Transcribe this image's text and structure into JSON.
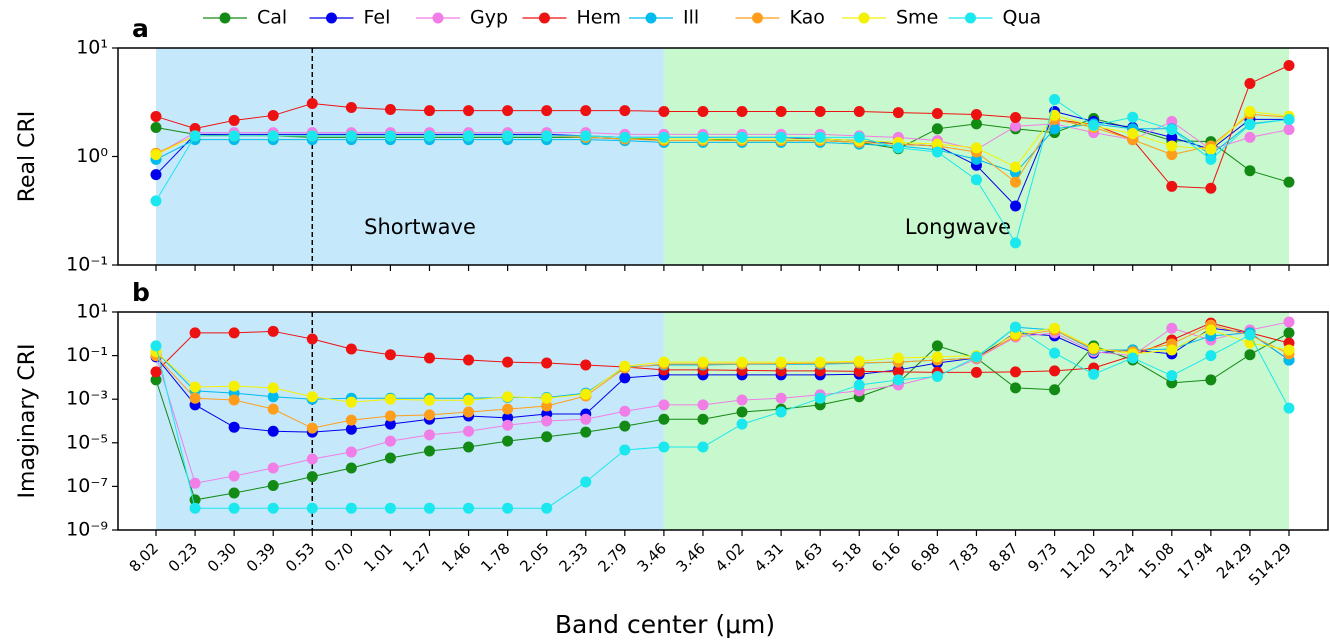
{
  "chart_data": [
    {
      "type": "line",
      "panel_label": "a",
      "ylabel": "Real CRI",
      "log_y": true,
      "ylim": [
        0.1,
        10
      ],
      "yticks": [
        {
          "value": 0.1,
          "label": "10⁻¹"
        },
        {
          "value": 1,
          "label": "10⁰"
        },
        {
          "value": 10,
          "label": "10¹"
        }
      ],
      "annotations": [
        "Shortwave",
        "Longwave"
      ],
      "series": [
        {
          "name": "Cal",
          "color": "#138a13",
          "values": [
            1.85,
            1.6,
            1.55,
            1.55,
            1.5,
            1.5,
            1.5,
            1.5,
            1.5,
            1.5,
            1.5,
            1.5,
            1.45,
            1.45,
            1.45,
            1.4,
            1.4,
            1.4,
            1.35,
            1.18,
            1.8,
            2.0,
            1.8,
            1.66,
            2.24,
            1.8,
            1.4,
            1.37,
            0.74,
            0.58
          ]
        },
        {
          "name": "Fel",
          "color": "#0000ee",
          "values": [
            0.68,
            1.6,
            1.6,
            1.6,
            1.6,
            1.6,
            1.6,
            1.6,
            1.6,
            1.6,
            1.6,
            1.55,
            1.5,
            1.5,
            1.5,
            1.5,
            1.5,
            1.45,
            1.4,
            1.3,
            1.25,
            0.83,
            0.35,
            2.6,
            2.1,
            1.85,
            1.5,
            1.16,
            2.2,
            2.2
          ]
        },
        {
          "name": "Gyp",
          "color": "#f07ee6",
          "values": [
            1.04,
            1.66,
            1.66,
            1.66,
            1.66,
            1.66,
            1.66,
            1.66,
            1.66,
            1.66,
            1.66,
            1.66,
            1.6,
            1.6,
            1.6,
            1.6,
            1.6,
            1.6,
            1.55,
            1.5,
            1.4,
            1.16,
            1.9,
            2.0,
            1.66,
            1.43,
            2.1,
            1.16,
            1.5,
            1.77
          ]
        },
        {
          "name": "Hem",
          "color": "#ee1111",
          "values": [
            2.34,
            1.81,
            2.15,
            2.39,
            3.08,
            2.83,
            2.71,
            2.65,
            2.65,
            2.65,
            2.65,
            2.65,
            2.65,
            2.6,
            2.6,
            2.6,
            2.6,
            2.6,
            2.6,
            2.54,
            2.49,
            2.44,
            2.29,
            2.19,
            1.97,
            1.43,
            0.53,
            0.51,
            4.71,
            6.9
          ]
        },
        {
          "name": "Ill",
          "color": "#00bbee",
          "values": [
            0.94,
            1.43,
            1.43,
            1.43,
            1.43,
            1.43,
            1.43,
            1.43,
            1.43,
            1.43,
            1.43,
            1.43,
            1.4,
            1.35,
            1.35,
            1.35,
            1.35,
            1.35,
            1.3,
            1.25,
            1.15,
            0.94,
            0.71,
            1.8,
            2.0,
            1.8,
            1.8,
            1.04,
            2.0,
            2.2
          ]
        },
        {
          "name": "Kao",
          "color": "#ff9e1a",
          "values": [
            1.07,
            1.55,
            1.55,
            1.55,
            1.55,
            1.55,
            1.55,
            1.55,
            1.55,
            1.55,
            1.55,
            1.5,
            1.45,
            1.4,
            1.4,
            1.4,
            1.4,
            1.4,
            1.35,
            1.3,
            1.25,
            1.1,
            0.58,
            2.2,
            1.85,
            1.43,
            1.04,
            1.25,
            2.45,
            2.3
          ]
        },
        {
          "name": "Sme",
          "color": "#f5f000",
          "values": [
            1.04,
            1.55,
            1.55,
            1.55,
            1.55,
            1.55,
            1.55,
            1.55,
            1.55,
            1.55,
            1.55,
            1.55,
            1.5,
            1.45,
            1.45,
            1.45,
            1.45,
            1.45,
            1.4,
            1.35,
            1.3,
            1.2,
            0.8,
            2.4,
            1.9,
            1.63,
            1.25,
            1.16,
            2.6,
            2.35
          ]
        },
        {
          "name": "Qua",
          "color": "#1ae8ee",
          "values": [
            0.39,
            1.55,
            1.55,
            1.55,
            1.55,
            1.55,
            1.55,
            1.55,
            1.55,
            1.55,
            1.55,
            1.55,
            1.5,
            1.5,
            1.5,
            1.5,
            1.5,
            1.5,
            1.5,
            1.2,
            1.1,
            0.61,
            0.16,
            3.35,
            1.93,
            2.3,
            1.77,
            0.94,
            1.97,
            2.2
          ]
        }
      ]
    },
    {
      "type": "line",
      "panel_label": "b",
      "ylabel": "Imaginary CRI",
      "log_y": true,
      "ylim": [
        1e-09,
        10
      ],
      "yticks": [
        {
          "value": 10,
          "label": "10¹"
        },
        {
          "value": 0.1,
          "label": "10⁻¹"
        },
        {
          "value": 0.001,
          "label": "10⁻³"
        },
        {
          "value": 1e-05,
          "label": "10⁻⁵"
        },
        {
          "value": 1e-07,
          "label": "10⁻⁷"
        },
        {
          "value": 1e-09,
          "label": "10⁻⁹"
        }
      ],
      "xlabel": "Band center (μm)",
      "categories": [
        "8.02",
        "0.23",
        "0.30",
        "0.39",
        "0.53",
        "0.70",
        "1.01",
        "1.27",
        "1.46",
        "1.78",
        "2.05",
        "2.33",
        "2.79",
        "3.46",
        "3.46",
        "4.02",
        "4.31",
        "4.63",
        "5.18",
        "6.16",
        "6.98",
        "7.83",
        "8.87",
        "9.73",
        "11.20",
        "13.24",
        "15.08",
        "17.94",
        "24.29",
        "514.29"
      ],
      "series": [
        {
          "color": "#138a13",
          "values": [
            0.0077,
            2.4e-08,
            5e-08,
            1.1e-07,
            2.8e-07,
            7e-07,
            2e-06,
            4.2e-06,
            6.4e-06,
            1.2e-05,
            1.9e-05,
            3.1e-05,
            5.8e-05,
            0.00012,
            0.00012,
            0.00026,
            0.00035,
            0.00055,
            0.0013,
            0.0056,
            0.28,
            0.078,
            0.0033,
            0.0027,
            0.28,
            0.063,
            0.0056,
            0.0077,
            0.11,
            1.1
          ]
        },
        {
          "color": "#0000ee",
          "values": [
            0.087,
            0.00055,
            5.2e-05,
            3.4e-05,
            3.1e-05,
            4.2e-05,
            7.2e-05,
            0.00012,
            0.00017,
            0.00014,
            0.00021,
            0.00021,
            0.0095,
            0.013,
            0.013,
            0.013,
            0.013,
            0.013,
            0.014,
            0.022,
            0.046,
            0.078,
            1.1,
            0.8,
            0.13,
            0.18,
            0.12,
            1.8,
            1.1,
            0.063
          ]
        },
        {
          "color": "#f07ee6",
          "values": [
            0.1,
            1.4e-07,
            3e-07,
            7e-07,
            1.8e-06,
            3.8e-06,
            1.2e-05,
            2.3e-05,
            3.4e-05,
            6.4e-05,
            0.0001,
            0.00012,
            0.00028,
            0.00055,
            0.00055,
            0.00092,
            0.0011,
            0.0016,
            0.0024,
            0.0045,
            0.012,
            0.07,
            0.71,
            1.1,
            0.15,
            0.1,
            1.8,
            0.52,
            1.5,
            3.5
          ]
        },
        {
          "color": "#ee1111",
          "values": [
            0.018,
            1.1,
            1.1,
            1.3,
            0.58,
            0.2,
            0.11,
            0.078,
            0.063,
            0.05,
            0.046,
            0.037,
            0.03,
            0.022,
            0.022,
            0.021,
            0.02,
            0.02,
            0.019,
            0.018,
            0.017,
            0.017,
            0.018,
            0.02,
            0.027,
            0.1,
            0.52,
            3.1,
            1.1,
            0.38
          ]
        },
        {
          "color": "#00bbee",
          "values": [
            0.15,
            0.0024,
            0.0019,
            0.0013,
            0.001,
            0.0011,
            0.0011,
            0.0011,
            0.0011,
            0.0012,
            0.0012,
            0.0019,
            0.03,
            0.037,
            0.037,
            0.04,
            0.04,
            0.04,
            0.045,
            0.05,
            0.063,
            0.078,
            2,
            1.5,
            0.18,
            0.18,
            0.2,
            0.8,
            1.1,
            0.063
          ]
        },
        {
          "color": "#ff9e1a",
          "values": [
            0.1,
            0.0011,
            0.00092,
            0.00035,
            4.7e-05,
            0.00011,
            0.00017,
            0.00019,
            0.00026,
            0.00035,
            0.00049,
            0.0014,
            0.027,
            0.041,
            0.041,
            0.042,
            0.043,
            0.045,
            0.047,
            0.05,
            0.063,
            0.078,
            0.8,
            1.5,
            0.2,
            0.15,
            0.34,
            2.5,
            0.88,
            0.12
          ]
        },
        {
          "color": "#f5f000",
          "values": [
            0.15,
            0.0036,
            0.004,
            0.0033,
            0.0013,
            0.00073,
            0.001,
            0.0009,
            0.0009,
            0.0013,
            0.0011,
            0.0017,
            0.033,
            0.05,
            0.05,
            0.05,
            0.05,
            0.05,
            0.055,
            0.078,
            0.087,
            0.1,
            0.98,
            1.8,
            0.22,
            0.12,
            0.18,
            1.5,
            0.38,
            0.18
          ]
        },
        {
          "color": "#1ae8ee",
          "values": [
            0.28,
            1e-08,
            1e-08,
            1e-08,
            1e-08,
            1e-08,
            1e-08,
            1e-08,
            1e-08,
            1e-08,
            1e-08,
            1.6e-07,
            4.7e-06,
            6.4e-06,
            6.4e-06,
            7.2e-05,
            0.00026,
            0.0011,
            0.0045,
            0.0077,
            0.011,
            0.087,
            2,
            0.13,
            0.014,
            0.078,
            0.012,
            0.1,
            0.88,
            0.00039
          ]
        }
      ]
    }
  ]
}
